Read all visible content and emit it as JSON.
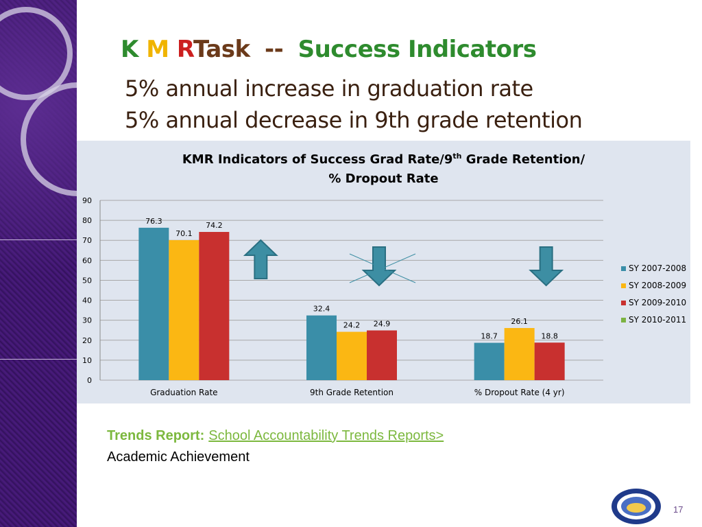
{
  "slide": {
    "title": {
      "k": "K",
      "m": "M",
      "r": "R",
      "task": "Task",
      "dash": "--",
      "rest": "Success Indicators"
    },
    "subtitle1": "5% annual increase in graduation rate",
    "subtitle2": "5% annual decrease in 9th grade retention",
    "footer_label": "Trends Report:",
    "footer_link": "School Accountability Trends Reports>",
    "footer_line2": "Academic Achievement",
    "page_number": "17",
    "colors": {
      "k": "#2e8b2e",
      "m": "#f0b400",
      "r": "#cc1f1f",
      "task": "#6b3a1a",
      "rest": "#2e8b2e",
      "arrow": "#3d8ea3"
    }
  },
  "chart_data": {
    "type": "bar",
    "title_line1": "KMR Indicators of Success Grad Rate/9",
    "title_sup": "th",
    "title_line1_end": " Grade Retention/",
    "title_line2": "% Dropout Rate",
    "categories": [
      "Graduation Rate",
      "9th Grade Retention",
      "% Dropout Rate (4 yr)"
    ],
    "series": [
      {
        "name": "SY 2007-2008",
        "values": [
          76.3,
          32.4,
          18.7
        ],
        "color": "#3a8ea8"
      },
      {
        "name": "SY 2008-2009",
        "values": [
          70.1,
          24.2,
          26.1
        ],
        "color": "#fbb713"
      },
      {
        "name": "SY 2009-2010",
        "values": [
          74.2,
          24.9,
          18.8
        ],
        "color": "#c8302f"
      },
      {
        "name": "SY 2010-2011",
        "values": [
          null,
          null,
          null
        ],
        "color": "#7cb342"
      }
    ],
    "data_labels": [
      [
        "76.3",
        "32.4",
        "18.7"
      ],
      [
        "70.1",
        "24.2",
        "26.1"
      ],
      [
        "74.2",
        "24.9",
        "18.8"
      ]
    ],
    "y_ticks": [
      "0",
      "10",
      "20",
      "30",
      "40",
      "50",
      "60",
      "70",
      "80",
      "90"
    ],
    "ylim": [
      0,
      90
    ],
    "grid": true,
    "legend_position": "right",
    "annotations": [
      {
        "type": "arrow-up",
        "category": "Graduation Rate"
      },
      {
        "type": "arrow-down-crossed",
        "category": "9th Grade Retention"
      },
      {
        "type": "arrow-down",
        "category": "% Dropout Rate (4 yr)"
      }
    ]
  }
}
